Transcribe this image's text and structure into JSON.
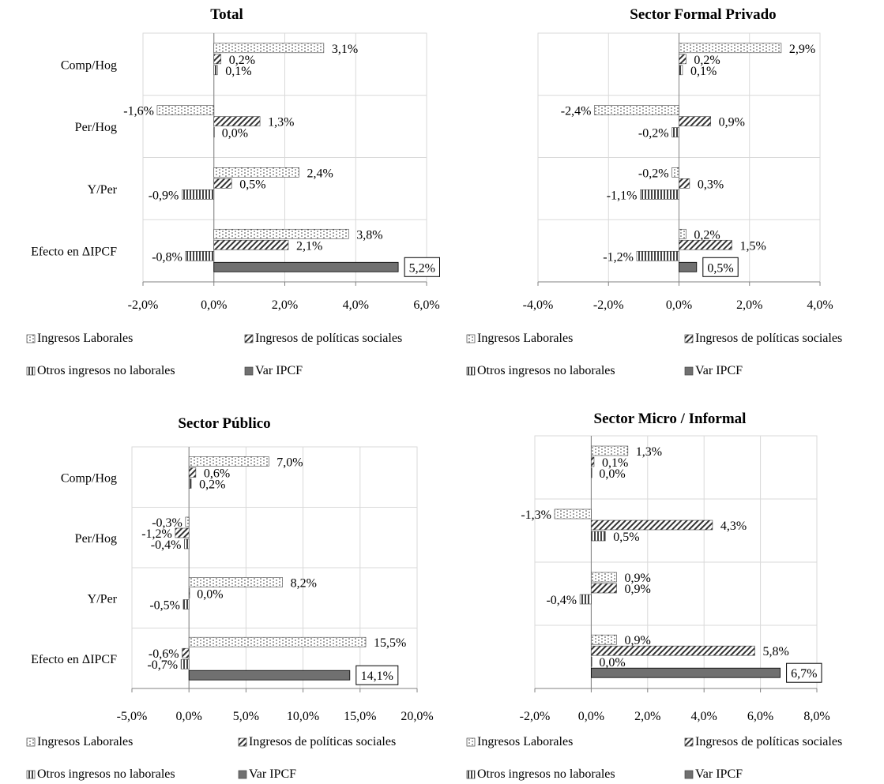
{
  "page": {
    "colors": {
      "ingresos_laborales": "#ffffff",
      "politicas_sociales": "#ffffff",
      "otros_ingresos": "#555555",
      "var_ipcf": "#707070",
      "grid": "#d9d9d9",
      "axis": "#808080"
    }
  },
  "chart_data": [
    {
      "type": "bar",
      "orientation": "horizontal",
      "title": "Total",
      "categories": [
        "Comp/Hog",
        "Per/Hog",
        "Y/Per",
        "Efecto en ΔIPCF"
      ],
      "xlim": [
        -2,
        6
      ],
      "ticks": [
        -2,
        0,
        2,
        4,
        6
      ],
      "tick_labels": [
        "-2,0%",
        "0,0%",
        "2,0%",
        "4,0%",
        "6,0%"
      ],
      "grid": true,
      "legend_position": "bottom",
      "series": [
        {
          "name": "Ingresos Laborales",
          "values": [
            3.1,
            -1.6,
            2.4,
            3.8
          ],
          "labels": [
            "3,1%",
            "-1,6%",
            "2,4%",
            "3,8%"
          ]
        },
        {
          "name": "Ingresos de políticas sociales",
          "values": [
            0.2,
            1.3,
            0.5,
            2.1
          ],
          "labels": [
            "0,2%",
            "1,3%",
            "0,5%",
            "2,1%"
          ]
        },
        {
          "name": "Otros ingresos no laborales",
          "values": [
            0.1,
            0.0,
            -0.9,
            -0.8
          ],
          "labels": [
            "0,1%",
            "0,0%",
            "-0,9%",
            "-0,8%"
          ]
        },
        {
          "name": "Var IPCF",
          "values": [
            null,
            null,
            null,
            5.2
          ],
          "labels": [
            "",
            "",
            "",
            "5,2%"
          ]
        }
      ]
    },
    {
      "type": "bar",
      "orientation": "horizontal",
      "title": "Sector Formal Privado",
      "categories": [
        "Comp/Hog",
        "Per/Hog",
        "Y/Per",
        "Efecto en ΔIPCF"
      ],
      "xlim": [
        -4,
        4
      ],
      "ticks": [
        -4,
        -2,
        0,
        2,
        4
      ],
      "tick_labels": [
        "-4,0%",
        "-2,0%",
        "0,0%",
        "2,0%",
        "4,0%"
      ],
      "grid": true,
      "legend_position": "bottom",
      "series": [
        {
          "name": "Ingresos Laborales",
          "values": [
            2.9,
            -2.4,
            -0.2,
            0.2
          ],
          "labels": [
            "2,9%",
            "-2,4%",
            "-0,2%",
            "0,2%"
          ]
        },
        {
          "name": "Ingresos de políticas sociales",
          "values": [
            0.2,
            0.9,
            0.3,
            1.5
          ],
          "labels": [
            "0,2%",
            "0,9%",
            "0,3%",
            "1,5%"
          ]
        },
        {
          "name": "Otros ingresos no laborales",
          "values": [
            0.1,
            -0.2,
            -1.1,
            -1.2
          ],
          "labels": [
            "0,1%",
            "-0,2%",
            "-1,1%",
            "-1,2%"
          ]
        },
        {
          "name": "Var IPCF",
          "values": [
            null,
            null,
            null,
            0.5
          ],
          "labels": [
            "",
            "",
            "",
            "0,5%"
          ]
        }
      ]
    },
    {
      "type": "bar",
      "orientation": "horizontal",
      "title": "Sector Público",
      "categories": [
        "Comp/Hog",
        "Per/Hog",
        "Y/Per",
        "Efecto en ΔIPCF"
      ],
      "xlim": [
        -5,
        20
      ],
      "ticks": [
        -5,
        0,
        5,
        10,
        15,
        20
      ],
      "tick_labels": [
        "-5,0%",
        "0,0%",
        "5,0%",
        "10,0%",
        "15,0%",
        "20,0%"
      ],
      "grid": true,
      "legend_position": "bottom",
      "series": [
        {
          "name": "Ingresos Laborales",
          "values": [
            7.0,
            -0.3,
            8.2,
            15.5
          ],
          "labels": [
            "7,0%",
            "-0,3%",
            "8,2%",
            "15,5%"
          ]
        },
        {
          "name": "Ingresos de políticas sociales",
          "values": [
            0.6,
            -1.2,
            0.0,
            -0.6
          ],
          "labels": [
            "0,6%",
            "-1,2%",
            "0,0%",
            "-0,6%"
          ]
        },
        {
          "name": "Otros ingresos no laborales",
          "values": [
            0.2,
            -0.4,
            -0.5,
            -0.7
          ],
          "labels": [
            "0,2%",
            "-0,4%",
            "-0,5%",
            "-0,7%"
          ]
        },
        {
          "name": "Var IPCF",
          "values": [
            null,
            null,
            null,
            14.1
          ],
          "labels": [
            "",
            "",
            "",
            "14,1%"
          ]
        }
      ]
    },
    {
      "type": "bar",
      "orientation": "horizontal",
      "title": "Sector Micro / Informal",
      "categories": [
        "Comp/Hog",
        "Per/Hog",
        "Y/Per",
        "Efecto en ΔIPCF"
      ],
      "xlim": [
        -2,
        8
      ],
      "ticks": [
        -2,
        0,
        2,
        4,
        6,
        8
      ],
      "tick_labels": [
        "-2,0%",
        "0,0%",
        "2,0%",
        "4,0%",
        "6,0%",
        "8,0%"
      ],
      "grid": true,
      "legend_position": "bottom",
      "series": [
        {
          "name": "Ingresos Laborales",
          "values": [
            1.3,
            -1.3,
            0.9,
            0.9
          ],
          "labels": [
            "1,3%",
            "-1,3%",
            "0,9%",
            "0,9%"
          ]
        },
        {
          "name": "Ingresos de políticas sociales",
          "values": [
            0.1,
            4.3,
            0.9,
            5.8
          ],
          "labels": [
            "0,1%",
            "4,3%",
            "0,9%",
            "5,8%"
          ]
        },
        {
          "name": "Otros ingresos no laborales",
          "values": [
            0.0,
            0.5,
            -0.4,
            0.0
          ],
          "labels": [
            "0,0%",
            "0,5%",
            "-0,4%",
            "0,0%"
          ]
        },
        {
          "name": "Var IPCF",
          "values": [
            null,
            null,
            null,
            6.7
          ],
          "labels": [
            "",
            "",
            "",
            "6,7%"
          ]
        }
      ]
    }
  ]
}
